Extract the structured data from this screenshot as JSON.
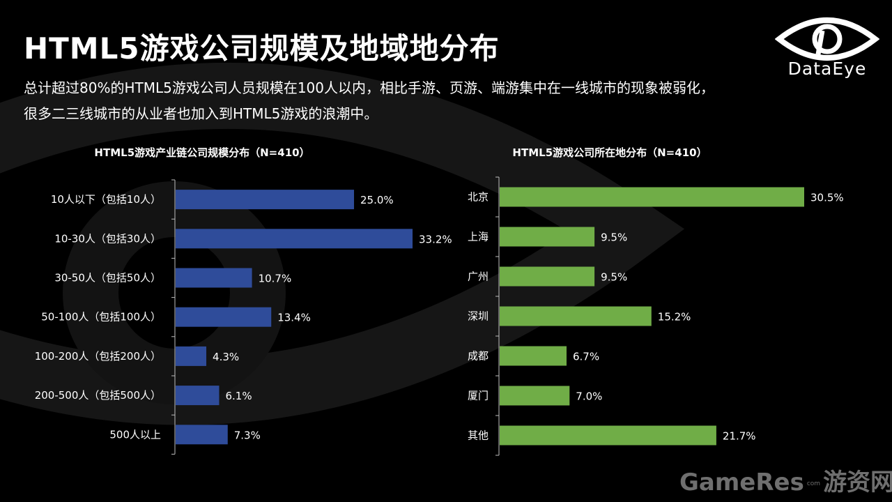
{
  "page": {
    "title": "HTML5游戏公司规模及地域地分布",
    "subtitle": "总计超过80%的HTML5游戏公司人员规模在100人以内，相比手游、页游、端游集中在一线城市的现象被弱化，很多二三线城市的从业者也加入到HTML5游戏的浪潮中。"
  },
  "logo": {
    "text": "DataEye"
  },
  "watermark": {
    "main": "GameRes",
    "com": "com",
    "cn": "游资网"
  },
  "colors": {
    "background": "#000000",
    "bar_left": "#2f4c9a",
    "bar_right": "#70ad47",
    "text": "#ffffff"
  },
  "chart_data": [
    {
      "type": "bar",
      "orientation": "horizontal",
      "title": "HTML5游戏产业链公司规模分布（N=410）",
      "categories": [
        "10人以下（包括10人）",
        "10-30人（包括30人）",
        "30-50人（包括50人）",
        "50-100人（包括100人）",
        "100-200人（包括200人）",
        "200-500人（包括500人）",
        "500人以上"
      ],
      "values": [
        25.0,
        33.2,
        10.7,
        13.4,
        4.3,
        6.1,
        7.3
      ],
      "value_labels": [
        "25.0%",
        "33.2%",
        "10.7%",
        "13.4%",
        "4.3%",
        "6.1%",
        "7.3%"
      ],
      "color": "#2f4c9a",
      "grid": false,
      "xlim": [
        0,
        33.2
      ]
    },
    {
      "type": "bar",
      "orientation": "horizontal",
      "title": "HTML5游戏公司所在地分布（N=410）",
      "categories": [
        "北京",
        "上海",
        "广州",
        "深圳",
        "成都",
        "厦门",
        "其他"
      ],
      "values": [
        30.5,
        9.5,
        9.5,
        15.2,
        6.7,
        7.0,
        21.7
      ],
      "value_labels": [
        "30.5%",
        "9.5%",
        "9.5%",
        "15.2%",
        "6.7%",
        "7.0%",
        "21.7%"
      ],
      "color": "#70ad47",
      "grid": false,
      "xlim": [
        0,
        30.5
      ]
    }
  ]
}
